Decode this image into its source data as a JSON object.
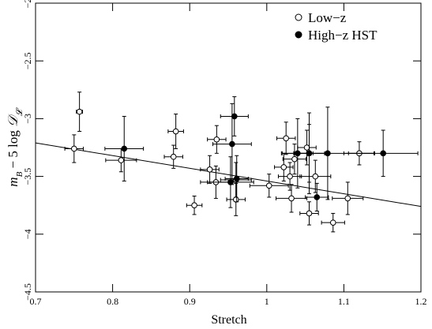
{
  "chart_data": {
    "type": "scatter",
    "xlabel": "Stretch",
    "ylabel": [
      "m",
      "B",
      " − 5 log ",
      "𝒟",
      "𝓛"
    ],
    "xlim": [
      0.7,
      1.2
    ],
    "xticks": [
      0.7,
      0.8,
      0.9,
      1,
      1.1,
      1.2
    ],
    "ylim": [
      -4.5,
      -2
    ],
    "yinverted": true,
    "yticks": [
      {
        "value": -2,
        "label": "−2"
      },
      {
        "value": -2.5,
        "label": "−2.5"
      },
      {
        "value": -3,
        "label": "−3"
      },
      {
        "value": -3.5,
        "label": "−3.5"
      },
      {
        "value": -4,
        "label": "−4"
      },
      {
        "value": -4.5,
        "label": "−4.5"
      }
    ],
    "legend": "upper right",
    "series": [
      {
        "name": "Low−z",
        "marker": "open",
        "color": "#000000",
        "x": [
          0.75,
          0.757,
          0.811,
          0.882,
          0.879,
          0.906,
          0.926,
          0.934,
          0.935,
          0.96,
          0.96,
          1.003,
          1.022,
          1.025,
          1.03,
          1.032,
          1.036,
          1.052,
          1.055,
          1.063,
          1.086,
          1.105,
          1.12,
          1.055
        ],
        "values": [
          -3.26,
          -2.94,
          -3.36,
          -3.11,
          -3.33,
          -3.75,
          -3.44,
          -3.55,
          -3.18,
          -3.7,
          -3.53,
          -3.58,
          -3.42,
          -3.17,
          -3.5,
          -3.69,
          -3.35,
          -3.25,
          -3.82,
          -3.5,
          -3.9,
          -3.69,
          -3.3,
          -3.3
        ],
        "xerr": [
          0.012,
          0.004,
          0.02,
          0.01,
          0.012,
          0.01,
          0.012,
          0.02,
          0.012,
          0.012,
          0.02,
          0.025,
          0.012,
          0.012,
          0.015,
          0.02,
          0.015,
          0.012,
          0.012,
          0.02,
          0.015,
          0.02,
          0.02,
          0.02
        ],
        "yerr": [
          0.12,
          0.17,
          0.1,
          0.15,
          0.1,
          0.08,
          0.12,
          0.14,
          0.12,
          0.14,
          0.15,
          0.1,
          0.12,
          0.14,
          0.12,
          0.12,
          0.13,
          0.15,
          0.1,
          0.14,
          0.08,
          0.14,
          0.1,
          0.25
        ]
      },
      {
        "name": "High−z HST",
        "marker": "filled",
        "color": "#000000",
        "x": [
          0.815,
          0.958,
          0.955,
          0.953,
          0.961,
          1.04,
          1.055,
          1.065,
          1.079,
          1.151
        ],
        "values": [
          -3.26,
          -2.98,
          -3.22,
          -3.55,
          -3.52,
          -3.3,
          -3.3,
          -3.68,
          -3.3,
          -3.3
        ],
        "xerr": [
          0.025,
          0.018,
          0.025,
          0.03,
          0.015,
          0.02,
          0.02,
          0.015,
          0.06,
          0.045
        ],
        "yerr": [
          0.28,
          0.17,
          0.35,
          0.22,
          0.2,
          0.3,
          0.35,
          0.12,
          0.4,
          0.2
        ]
      }
    ],
    "fit_line": {
      "x": [
        0.7,
        1.2
      ],
      "values": [
        -3.21,
        -3.76
      ]
    }
  }
}
